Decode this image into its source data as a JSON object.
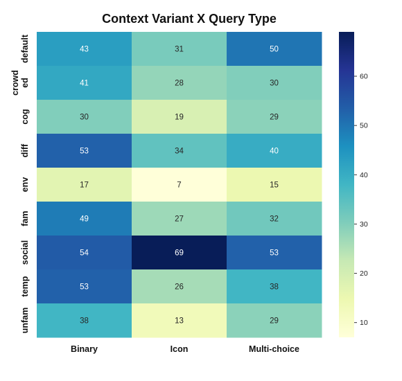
{
  "chart_data": {
    "type": "heatmap",
    "title": "Context Variant X Query Type",
    "xlabel": "",
    "ylabel": "",
    "columns": [
      "Binary",
      "Icon",
      "Multi-choice"
    ],
    "rows": [
      [
        "default"
      ],
      [
        "crowd",
        "ed"
      ],
      [
        "cog"
      ],
      [
        "diff"
      ],
      [
        "env"
      ],
      [
        "fam"
      ],
      [
        "social"
      ],
      [
        "temp"
      ],
      [
        "unfam"
      ]
    ],
    "values": [
      [
        43,
        31,
        50
      ],
      [
        41,
        28,
        30
      ],
      [
        30,
        19,
        29
      ],
      [
        53,
        34,
        40
      ],
      [
        17,
        7,
        15
      ],
      [
        49,
        27,
        32
      ],
      [
        54,
        69,
        53
      ],
      [
        53,
        26,
        38
      ],
      [
        38,
        13,
        29
      ]
    ],
    "colormap": "YlGnBu",
    "vmin": 7,
    "vmax": 69,
    "colorbar_ticks": [
      10,
      20,
      30,
      40,
      50,
      60
    ],
    "grid": false,
    "legend": "right"
  }
}
